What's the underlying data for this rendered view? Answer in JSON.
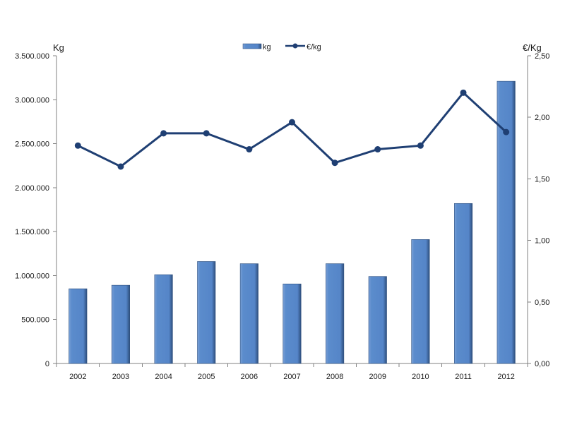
{
  "chart_data": {
    "type": "bar",
    "categories": [
      "2002",
      "2003",
      "2004",
      "2005",
      "2006",
      "2007",
      "2008",
      "2009",
      "2010",
      "2011",
      "2012"
    ],
    "series": [
      {
        "name": "kg",
        "type": "bar",
        "axis": "left",
        "values": [
          850000,
          890000,
          1010000,
          1160000,
          1135000,
          905000,
          1135000,
          990000,
          1410000,
          1820000,
          3210000
        ]
      },
      {
        "name": "€/kg",
        "type": "line",
        "axis": "right",
        "values": [
          1.77,
          1.6,
          1.87,
          1.87,
          1.74,
          1.96,
          1.63,
          1.74,
          1.77,
          2.2,
          1.88
        ]
      }
    ],
    "ylabel": "Kg",
    "y2label": "€/Kg",
    "ylim": [
      0,
      3500000
    ],
    "y2lim": [
      0,
      2.5
    ],
    "yticks": [
      "0",
      "500.000",
      "1.000.000",
      "1.500.000",
      "2.000.000",
      "2.500.000",
      "3.000.000",
      "3.500.000"
    ],
    "y2ticks": [
      "0,00",
      "0,50",
      "1,00",
      "1,50",
      "2,00",
      "2,50"
    ],
    "grid": false,
    "legend_position": "top-center",
    "colors": {
      "bar_fill": "#5585c8",
      "bar_edge": "#2e4f7d",
      "line": "#1f3f73",
      "marker": "#1f3f73"
    }
  }
}
